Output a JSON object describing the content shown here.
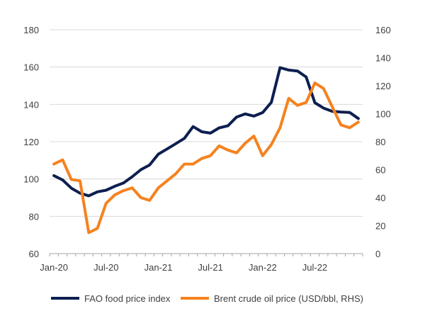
{
  "chart_data": {
    "type": "line",
    "title": "",
    "x_dates": [
      "2020-01",
      "2020-02",
      "2020-03",
      "2020-04",
      "2020-05",
      "2020-06",
      "2020-07",
      "2020-08",
      "2020-09",
      "2020-10",
      "2020-11",
      "2020-12",
      "2021-01",
      "2021-02",
      "2021-03",
      "2021-04",
      "2021-05",
      "2021-06",
      "2021-07",
      "2021-08",
      "2021-09",
      "2021-10",
      "2021-11",
      "2021-12",
      "2022-01",
      "2022-02",
      "2022-03",
      "2022-04",
      "2022-05",
      "2022-06",
      "2022-07",
      "2022-08",
      "2022-09",
      "2022-10",
      "2022-11",
      "2022-12"
    ],
    "x_tick_labels": [
      {
        "label": "Jan-20",
        "index": 0
      },
      {
        "label": "Jul-20",
        "index": 6
      },
      {
        "label": "Jan-21",
        "index": 12
      },
      {
        "label": "Jul-21",
        "index": 18
      },
      {
        "label": "Jan-22",
        "index": 24
      },
      {
        "label": "Jul-22",
        "index": 30
      }
    ],
    "y_left": {
      "min": 60,
      "max": 180,
      "ticks": [
        60,
        80,
        100,
        120,
        140,
        160,
        180
      ]
    },
    "y_right": {
      "min": 0,
      "max": 160,
      "ticks": [
        0,
        20,
        40,
        60,
        80,
        100,
        120,
        140,
        160
      ]
    },
    "gridlines": "horizontal",
    "legend_position": "bottom",
    "series": [
      {
        "name": "FAO food price index",
        "axis": "left",
        "color": "#0d1f4f",
        "values": [
          101.8,
          99.5,
          95.1,
          92.4,
          91.0,
          93.1,
          94.0,
          96.1,
          97.9,
          101.2,
          105.0,
          107.5,
          113.3,
          116.1,
          118.9,
          121.8,
          128.1,
          125.3,
          124.6,
          127.4,
          128.5,
          133.2,
          134.9,
          133.7,
          135.6,
          141.1,
          159.7,
          158.4,
          157.9,
          154.7,
          140.9,
          138.0,
          136.3,
          135.9,
          135.7,
          132.4
        ]
      },
      {
        "name": "Brent crude oil price (USD/bbl, RHS)",
        "axis": "right",
        "color": "#f58220",
        "values": [
          64,
          67,
          53,
          52,
          15,
          18,
          36,
          42,
          45,
          47,
          40,
          38,
          47,
          52,
          57,
          64,
          64,
          68,
          70,
          77,
          74,
          72,
          79,
          84,
          70,
          78,
          90,
          111,
          106,
          108,
          122,
          118,
          105,
          92,
          90,
          94
        ]
      }
    ]
  }
}
